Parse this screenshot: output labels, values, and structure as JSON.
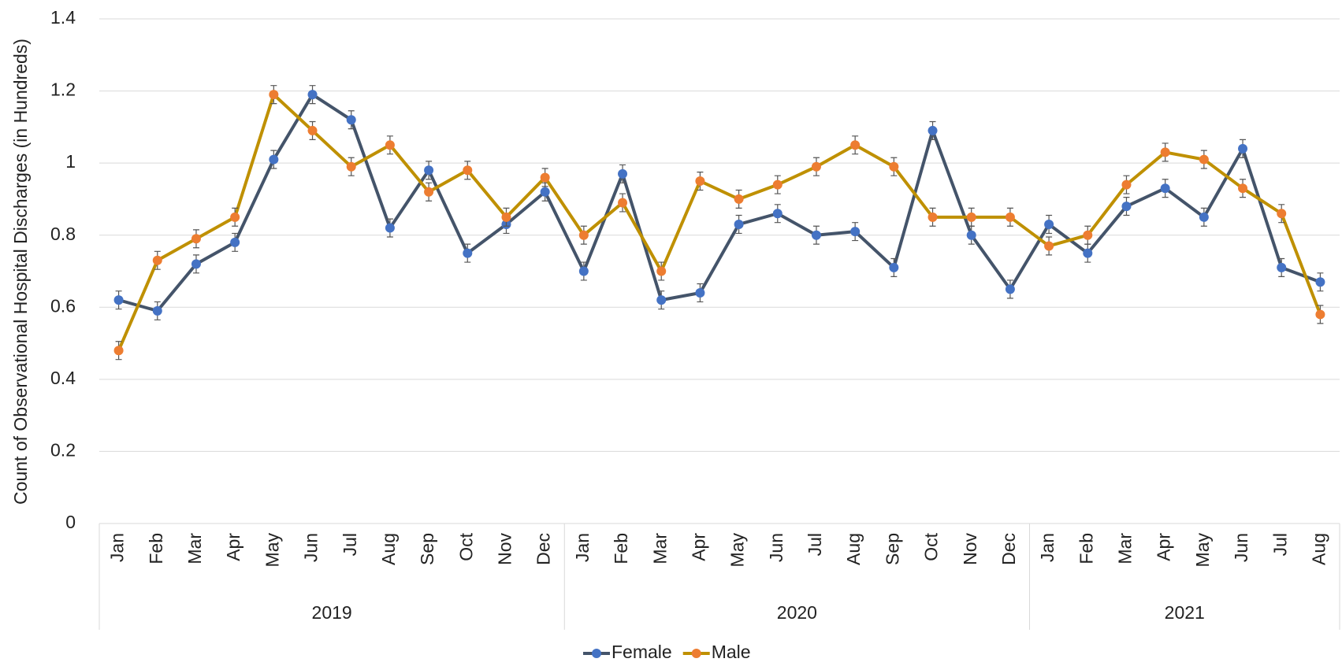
{
  "chart_data": {
    "type": "line",
    "y_label": "Count of Observational Hospital Discharges  (in Hundreds)",
    "groups": [
      {
        "label": "2019",
        "categories": [
          "Jan",
          "Feb",
          "Mar",
          "Apr",
          "May",
          "Jun",
          "Jul",
          "Aug",
          "Sep",
          "Oct",
          "Nov",
          "Dec"
        ]
      },
      {
        "label": "2020",
        "categories": [
          "Jan",
          "Feb",
          "Mar",
          "Apr",
          "May",
          "Jun",
          "Jul",
          "Aug",
          "Sep",
          "Oct",
          "Nov",
          "Dec"
        ]
      },
      {
        "label": "2021",
        "categories": [
          "Jan",
          "Feb",
          "Mar",
          "Apr",
          "May",
          "Jun",
          "Jul",
          "Aug"
        ]
      }
    ],
    "series": [
      {
        "name": "Female",
        "color": "#44546a",
        "marker_color": "#4472c4",
        "values": [
          0.62,
          0.59,
          0.72,
          0.78,
          1.01,
          1.19,
          1.12,
          0.82,
          0.98,
          0.75,
          0.83,
          0.92,
          0.7,
          0.97,
          0.62,
          0.64,
          0.83,
          0.86,
          0.8,
          0.81,
          0.71,
          1.09,
          0.8,
          0.65,
          0.83,
          0.75,
          0.88,
          0.93,
          0.85,
          1.04,
          0.71,
          0.67
        ],
        "errors": [
          0.025,
          0.025,
          0.025,
          0.025,
          0.025,
          0.025,
          0.025,
          0.025,
          0.025,
          0.025,
          0.025,
          0.025,
          0.025,
          0.025,
          0.025,
          0.025,
          0.025,
          0.025,
          0.025,
          0.025,
          0.025,
          0.025,
          0.025,
          0.025,
          0.025,
          0.025,
          0.025,
          0.025,
          0.025,
          0.025,
          0.025,
          0.025
        ]
      },
      {
        "name": "Male",
        "color": "#bf9000",
        "marker_color": "#ed7d31",
        "values": [
          0.48,
          0.73,
          0.79,
          0.85,
          1.19,
          1.09,
          0.99,
          1.05,
          0.92,
          0.98,
          0.85,
          0.96,
          0.8,
          0.89,
          0.7,
          0.95,
          0.9,
          0.94,
          0.99,
          1.05,
          0.99,
          0.85,
          0.85,
          0.85,
          0.77,
          0.8,
          0.94,
          1.03,
          1.01,
          0.93,
          0.86,
          0.58
        ],
        "errors": [
          0.025,
          0.025,
          0.025,
          0.025,
          0.025,
          0.025,
          0.025,
          0.025,
          0.025,
          0.025,
          0.025,
          0.025,
          0.025,
          0.025,
          0.025,
          0.025,
          0.025,
          0.025,
          0.025,
          0.025,
          0.025,
          0.025,
          0.025,
          0.025,
          0.025,
          0.025,
          0.025,
          0.025,
          0.025,
          0.025,
          0.025,
          0.025
        ]
      }
    ],
    "ylim": [
      0,
      1.4
    ],
    "yticks": [
      0,
      0.2,
      0.4,
      0.6,
      0.8,
      1,
      1.2,
      1.4
    ],
    "grid": true,
    "legend": "bottom"
  }
}
